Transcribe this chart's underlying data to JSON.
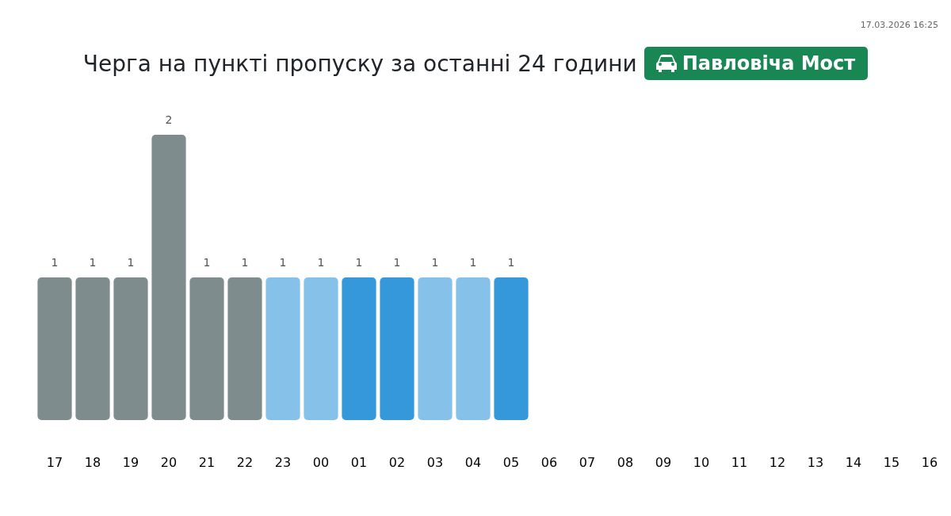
{
  "chart_data": {
    "type": "bar",
    "title": "Черга на пункті пропуску за останні 24 години",
    "subtitle": "Павловіча Мост",
    "annotations": [
      "17.03.2026 16:25"
    ],
    "categories": [
      "17",
      "18",
      "19",
      "20",
      "21",
      "22",
      "23",
      "00",
      "01",
      "02",
      "03",
      "04",
      "05",
      "06",
      "07",
      "08",
      "09",
      "10",
      "11",
      "12",
      "13",
      "14",
      "15",
      "16"
    ],
    "values": [
      1,
      1,
      1,
      2,
      1,
      1,
      1,
      1,
      1,
      1,
      1,
      1,
      1,
      null,
      null,
      null,
      null,
      null,
      null,
      null,
      null,
      null,
      null,
      null
    ],
    "colors": [
      "#7f8c8d",
      "#7f8c8d",
      "#7f8c8d",
      "#7f8c8d",
      "#7f8c8d",
      "#7f8c8d",
      "#85c1e9",
      "#85c1e9",
      "#3498db",
      "#3498db",
      "#85c1e9",
      "#85c1e9",
      "#3498db",
      null,
      null,
      null,
      null,
      null,
      null,
      null,
      null,
      null,
      null,
      null
    ],
    "data_labels": true,
    "tick_labels": "x"
  }
}
